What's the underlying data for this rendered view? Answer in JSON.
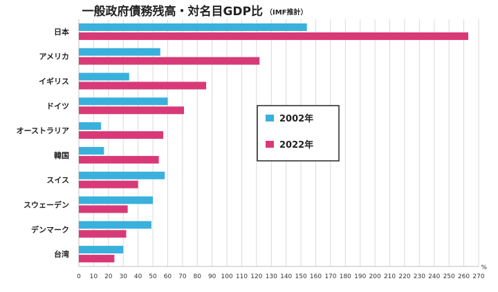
{
  "chart_data": {
    "type": "bar",
    "orientation": "horizontal",
    "title": "一般政府債務残高・対名目GDP比",
    "subtitle": "（IMF推計）",
    "unit": "%",
    "categories": [
      "日本",
      "アメリカ",
      "イギリス",
      "ドイツ",
      "オーストラリア",
      "韓国",
      "スイス",
      "スウェーデン",
      "デンマーク",
      "台湾"
    ],
    "series": [
      {
        "name": "2002年",
        "color": "#3ab0dc",
        "values": [
          154,
          55,
          34,
          60,
          15,
          17,
          58,
          50,
          49,
          30
        ]
      },
      {
        "name": "2022年",
        "color": "#d83a78",
        "values": [
          263,
          122,
          86,
          71,
          57,
          54,
          40,
          33,
          32,
          24
        ]
      }
    ],
    "xlim": [
      0,
      270
    ],
    "xticks": [
      0,
      10,
      20,
      30,
      40,
      50,
      60,
      70,
      80,
      90,
      100,
      110,
      120,
      130,
      140,
      150,
      160,
      170,
      180,
      190,
      200,
      210,
      220,
      230,
      240,
      250,
      260,
      270
    ],
    "grid": true,
    "legend_position": "center"
  }
}
